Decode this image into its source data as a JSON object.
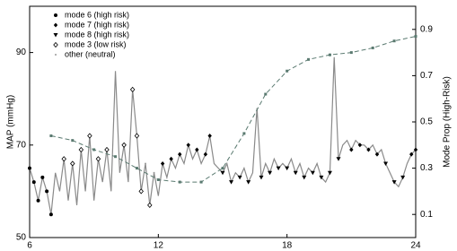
{
  "chart_data": {
    "type": "line",
    "ylabel": "MAP (mmHg)",
    "y2label": "Mode Prop (High-Risk)",
    "xlim": [
      6,
      24
    ],
    "xticks": [
      6,
      12,
      18,
      24
    ],
    "ylim": [
      50,
      100
    ],
    "yticks": [
      50,
      70,
      90
    ],
    "y2lim": [
      0,
      1
    ],
    "y2ticks": [
      0.1,
      0.3,
      0.5,
      0.7,
      0.9
    ],
    "legend": "upper left",
    "series": [
      {
        "color": "#8a8a8a",
        "marker": "none",
        "x": [
          6.0,
          6.2,
          6.4,
          6.6,
          6.8,
          7.0,
          7.2,
          7.4,
          7.6,
          7.8,
          8.0,
          8.2,
          8.4,
          8.6,
          8.8,
          9.0,
          9.2,
          9.4,
          9.6,
          9.8,
          10.0,
          10.2,
          10.4,
          10.6,
          10.8,
          11.0,
          11.2,
          11.4,
          11.6,
          11.8,
          12.0,
          12.2,
          12.4,
          12.6,
          12.8,
          13.0,
          13.2,
          13.4,
          13.6,
          13.8,
          14.0,
          14.2,
          14.4,
          14.6,
          14.8,
          15.0,
          15.2,
          15.4,
          15.6,
          15.8,
          16.0,
          16.2,
          16.4,
          16.6,
          16.8,
          17.0,
          17.2,
          17.4,
          17.6,
          17.8,
          18.0,
          18.2,
          18.4,
          18.6,
          18.8,
          19.0,
          19.2,
          19.4,
          19.6,
          19.8,
          20.0,
          20.2,
          20.4,
          20.6,
          20.8,
          21.0,
          21.2,
          21.4,
          21.6,
          21.8,
          22.0,
          22.2,
          22.4,
          22.6,
          22.8,
          23.0,
          23.2,
          23.4,
          23.6,
          23.8,
          24.0
        ],
        "values": [
          65,
          62,
          58,
          63,
          60,
          55,
          64,
          60,
          67,
          58,
          66,
          57,
          69,
          60,
          72,
          58,
          67,
          62,
          69,
          60,
          86,
          64,
          70,
          62,
          82,
          72,
          60,
          66,
          57,
          64,
          59,
          66,
          63,
          67,
          65,
          68,
          66,
          70,
          67,
          69,
          66,
          68,
          72,
          66,
          65,
          64,
          66,
          62,
          64,
          63,
          65,
          62,
          64,
          78,
          63,
          66,
          64,
          67,
          65,
          66,
          65,
          67,
          64,
          66,
          63,
          65,
          64,
          66,
          63,
          62,
          64,
          89,
          67,
          70,
          71,
          69,
          71,
          70,
          70,
          69,
          70,
          68,
          69,
          66,
          64,
          62,
          61,
          63,
          66,
          68,
          69
        ]
      },
      {
        "name": "mode 6 (high risk)",
        "color": "#000000",
        "marker": "circle",
        "x": [
          6.0,
          6.2,
          6.4,
          6.6,
          6.8,
          7.0
        ],
        "values": [
          65,
          62,
          58,
          63,
          60,
          55
        ]
      },
      {
        "name": "mode 7 (high risk)",
        "color": "#000000",
        "marker": "diamond",
        "x": [
          12.2,
          12.6,
          13.0,
          13.4,
          13.8,
          14.2,
          14.4,
          21.0,
          21.4,
          21.8,
          22.2,
          23.8,
          24.0
        ],
        "values": [
          66,
          67,
          68,
          70,
          69,
          68,
          72,
          69,
          70,
          69,
          68,
          68,
          69
        ]
      },
      {
        "name": "mode 8 (high risk)",
        "color": "#000000",
        "marker": "triangle",
        "x": [
          15.0,
          15.4,
          15.8,
          16.2,
          16.8,
          17.2,
          17.6,
          18.0,
          18.4,
          18.8,
          19.2,
          19.6,
          20.0,
          20.4,
          22.6,
          23.0,
          23.4
        ],
        "values": [
          64,
          62,
          63,
          62,
          63,
          64,
          65,
          65,
          64,
          63,
          64,
          63,
          64,
          67,
          66,
          62,
          63
        ]
      },
      {
        "name": "mode 3 (low risk)",
        "color": "#000000",
        "marker": "open-diamond",
        "x": [
          7.6,
          8.0,
          8.4,
          8.8,
          9.2,
          9.6,
          10.4,
          10.8,
          11.0,
          11.2,
          11.6
        ],
        "values": [
          67,
          66,
          69,
          72,
          67,
          69,
          70,
          82,
          72,
          60,
          57
        ]
      },
      {
        "name": "other (neutral)",
        "color": "#9a9a9a",
        "marker": "dot",
        "x": [
          11.4,
          11.8
        ],
        "values": [
          66,
          64
        ]
      },
      {
        "color": "#5a7a70",
        "marker": "square",
        "dashed": true,
        "axis": "y2",
        "x": [
          7,
          8,
          9,
          10,
          11,
          12,
          13,
          14,
          15,
          16,
          17,
          18,
          19,
          20,
          21,
          22,
          23,
          24
        ],
        "values": [
          0.44,
          0.42,
          0.38,
          0.35,
          0.3,
          0.25,
          0.24,
          0.24,
          0.3,
          0.45,
          0.62,
          0.72,
          0.77,
          0.79,
          0.8,
          0.82,
          0.85,
          0.87
        ]
      }
    ]
  }
}
